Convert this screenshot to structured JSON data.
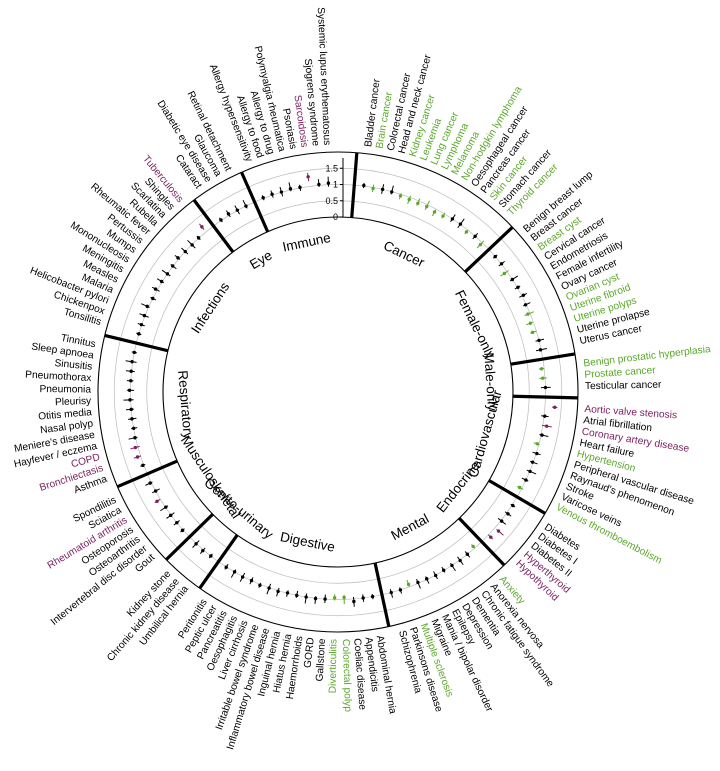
{
  "chart_data": {
    "type": "radial-forest",
    "y_ticks": [
      "0",
      "0.5",
      "1",
      "1.5"
    ],
    "colors": {
      "default": "#000000",
      "green": "#59a82a",
      "purple": "#7a1f5e"
    },
    "categories": [
      {
        "name": "Cancer",
        "diseases": [
          {
            "label": "Bladder cancer",
            "color": "default",
            "or": 1.02
          },
          {
            "label": "Brain cancer",
            "color": "green",
            "or": 0.97
          },
          {
            "label": "Colorectal cancer",
            "color": "default",
            "or": 1.0
          },
          {
            "label": "Head and neck cancer",
            "color": "default",
            "or": 0.99
          },
          {
            "label": "Kidney cancer",
            "color": "green",
            "or": 0.95
          },
          {
            "label": "Leukemia",
            "color": "green",
            "or": 0.93
          },
          {
            "label": "Lung cancer",
            "color": "green",
            "or": 0.92
          },
          {
            "label": "Lymphoma",
            "color": "green",
            "or": 0.94
          },
          {
            "label": "Melanoma",
            "color": "green",
            "or": 0.9
          },
          {
            "label": "Non-hodgkin lymphoma",
            "color": "green",
            "or": 0.92
          },
          {
            "label": "Oesophageal cancer",
            "color": "default",
            "or": 1.0
          },
          {
            "label": "Pancreas cancer",
            "color": "default",
            "or": 1.01
          },
          {
            "label": "Skin cancer",
            "color": "green",
            "or": 0.93
          },
          {
            "label": "Stomach cancer",
            "color": "default",
            "or": 1.0
          },
          {
            "label": "Thyroid cancer",
            "color": "green",
            "or": 0.92
          }
        ]
      },
      {
        "name": "Female-only",
        "diseases": [
          {
            "label": "Benign breast lump",
            "color": "default",
            "or": 1.0
          },
          {
            "label": "Breast cancer",
            "color": "default",
            "or": 1.01
          },
          {
            "label": "Breast cyst",
            "color": "green",
            "or": 0.9
          },
          {
            "label": "Cervical cancer",
            "color": "default",
            "or": 1.0
          },
          {
            "label": "Endometriosis",
            "color": "default",
            "or": 1.02
          },
          {
            "label": "Female infertility",
            "color": "default",
            "or": 1.05
          },
          {
            "label": "Ovary cancer",
            "color": "default",
            "or": 0.98
          },
          {
            "label": "Ovarian cyst",
            "color": "green",
            "or": 0.93
          },
          {
            "label": "Uterine fibroid",
            "color": "green",
            "or": 0.9
          },
          {
            "label": "Uterine polyps",
            "color": "green",
            "or": 0.88
          },
          {
            "label": "Uterine prolapse",
            "color": "default",
            "or": 1.0
          },
          {
            "label": "Uterus cancer",
            "color": "default",
            "or": 0.98
          }
        ]
      },
      {
        "name": "Male-only",
        "diseases": [
          {
            "label": "Benign prostatic hyperplasia",
            "color": "green",
            "or": 0.92
          },
          {
            "label": "Prostate cancer",
            "color": "green",
            "or": 0.93
          },
          {
            "label": "Testicular cancer",
            "color": "default",
            "or": 1.0
          }
        ]
      },
      {
        "name": "Cardiovascular",
        "diseases": [
          {
            "label": "Aortic valve stenosis",
            "color": "purple",
            "or": 1.3
          },
          {
            "label": "Atrial fibrillation",
            "color": "default",
            "or": 1.02
          },
          {
            "label": "Coronary artery disease",
            "color": "purple",
            "or": 1.12
          },
          {
            "label": "Heart failure",
            "color": "default",
            "or": 1.03
          },
          {
            "label": "Hypertension",
            "color": "green",
            "or": 0.95
          },
          {
            "label": "Peripheral vascular disease",
            "color": "default",
            "or": 1.02
          },
          {
            "label": "Raynaud's phenomenon",
            "color": "default",
            "or": 0.98
          },
          {
            "label": "Stroke",
            "color": "default",
            "or": 1.01
          },
          {
            "label": "Varicose veins",
            "color": "default",
            "or": 1.0
          },
          {
            "label": "Venous thromboembolism",
            "color": "green",
            "or": 0.93
          }
        ]
      },
      {
        "name": "Endocrine",
        "diseases": [
          {
            "label": "Diabetes",
            "color": "default",
            "or": 1.03
          },
          {
            "label": "Diabetes I",
            "color": "default",
            "or": 1.05
          },
          {
            "label": "Diabetes II",
            "color": "default",
            "or": 1.03
          },
          {
            "label": "Hyperthyroid",
            "color": "purple",
            "or": 1.15
          },
          {
            "label": "Hypothyroid",
            "color": "purple",
            "or": 1.1
          }
        ]
      },
      {
        "name": "Mental",
        "diseases": [
          {
            "label": "Anxiety",
            "color": "green",
            "or": 0.93
          },
          {
            "label": "Anorexia nervosa",
            "color": "default",
            "or": 1.0
          },
          {
            "label": "Chronic fatigue syndrome",
            "color": "default",
            "or": 1.02
          },
          {
            "label": "Dementia",
            "color": "default",
            "or": 1.0
          },
          {
            "label": "Depression",
            "color": "default",
            "or": 0.99
          },
          {
            "label": "Epilepsy",
            "color": "default",
            "or": 1.01
          },
          {
            "label": "Mania / bipolar disorder",
            "color": "default",
            "or": 0.98
          },
          {
            "label": "Migraine",
            "color": "default",
            "or": 0.97
          },
          {
            "label": "Multiple sclerosis",
            "color": "green",
            "or": 0.92
          },
          {
            "label": "Parkinsons disease",
            "color": "default",
            "or": 1.0
          },
          {
            "label": "Schizophrenia",
            "color": "default",
            "or": 1.0
          }
        ]
      },
      {
        "name": "Digestive",
        "diseases": [
          {
            "label": "Abdominal hernia",
            "color": "default",
            "or": 1.0
          },
          {
            "label": "Appendicitis",
            "color": "default",
            "or": 1.0
          },
          {
            "label": "Coeliac disease",
            "color": "default",
            "or": 1.08
          },
          {
            "label": "Colorectal polyp",
            "color": "green",
            "or": 0.94
          },
          {
            "label": "Diverticulitis",
            "color": "green",
            "or": 0.95
          },
          {
            "label": "Gallstone",
            "color": "default",
            "or": 1.0
          },
          {
            "label": "GORD",
            "color": "default",
            "or": 1.01
          },
          {
            "label": "Haemorrhoids",
            "color": "default",
            "or": 1.0
          },
          {
            "label": "Hiatus hernia",
            "color": "default",
            "or": 1.0
          },
          {
            "label": "Inguinal hernia",
            "color": "default",
            "or": 0.99
          },
          {
            "label": "Inflammatory bowel disease",
            "color": "default",
            "or": 1.02
          },
          {
            "label": "Irritable bowel syndrome",
            "color": "default",
            "or": 1.01
          },
          {
            "label": "Liver cirrhosis",
            "color": "default",
            "or": 1.03
          },
          {
            "label": "Oesophagitis",
            "color": "default",
            "or": 1.0
          },
          {
            "label": "Pancreatitis",
            "color": "default",
            "or": 1.02
          },
          {
            "label": "Peptic ulcer",
            "color": "default",
            "or": 1.0
          },
          {
            "label": "Peritonitis",
            "color": "default",
            "or": 1.01
          }
        ]
      },
      {
        "name": "Genito-urinary",
        "diseases": [
          {
            "label": "Umbilical hernia",
            "color": "default",
            "or": 1.0
          },
          {
            "label": "Chronic kidney disease",
            "color": "default",
            "or": 1.03
          },
          {
            "label": "Kidney stone",
            "color": "default",
            "or": 1.01
          }
        ]
      },
      {
        "name": "Musculoskeletal",
        "diseases": [
          {
            "label": "Gout",
            "color": "default",
            "or": 1.02
          },
          {
            "label": "Intervertebral disc disorder",
            "color": "default",
            "or": 1.0
          },
          {
            "label": "Osteoarthritis",
            "color": "default",
            "or": 1.01
          },
          {
            "label": "Osteoporosis",
            "color": "default",
            "or": 0.99
          },
          {
            "label": "Rheumatoid arthritis",
            "color": "purple",
            "or": 1.12
          },
          {
            "label": "Sciatica",
            "color": "default",
            "or": 1.0
          },
          {
            "label": "Spondilitis",
            "color": "default",
            "or": 1.04
          }
        ]
      },
      {
        "name": "Respiratory",
        "diseases": [
          {
            "label": "Asthma",
            "color": "default",
            "or": 1.03
          },
          {
            "label": "Bronchiectasis",
            "color": "purple",
            "or": 1.1
          },
          {
            "label": "COPD",
            "color": "purple",
            "or": 1.08
          },
          {
            "label": "Hayfever / eczema",
            "color": "default",
            "or": 1.02
          },
          {
            "label": "Meniere's disease",
            "color": "default",
            "or": 1.0
          },
          {
            "label": "Nasal polyp",
            "color": "default",
            "or": 1.01
          },
          {
            "label": "Otitis media",
            "color": "default",
            "or": 1.0
          },
          {
            "label": "Pleurisy",
            "color": "default",
            "or": 1.02
          },
          {
            "label": "Pneumonia",
            "color": "default",
            "or": 1.03
          },
          {
            "label": "Pneumothorax",
            "color": "default",
            "or": 1.0
          },
          {
            "label": "Sinusitis",
            "color": "default",
            "or": 1.01
          },
          {
            "label": "Sleep apnoea",
            "color": "default",
            "or": 1.02
          },
          {
            "label": "Tinnitus",
            "color": "default",
            "or": 1.0
          }
        ]
      },
      {
        "name": "Infections",
        "diseases": [
          {
            "label": "Tonsilitis",
            "color": "default",
            "or": 1.0
          },
          {
            "label": "Chickenpox",
            "color": "default",
            "or": 1.01
          },
          {
            "label": "Helicobacter pylori",
            "color": "default",
            "or": 1.02
          },
          {
            "label": "Malaria",
            "color": "default",
            "or": 1.05
          },
          {
            "label": "Measles",
            "color": "default",
            "or": 1.0
          },
          {
            "label": "Meningitis",
            "color": "default",
            "or": 1.06
          },
          {
            "label": "Mononucleosis",
            "color": "default",
            "or": 1.02
          },
          {
            "label": "Mumps",
            "color": "default",
            "or": 1.0
          },
          {
            "label": "Pertussis",
            "color": "default",
            "or": 1.01
          },
          {
            "label": "Rheumatic fever",
            "color": "default",
            "or": 1.04
          },
          {
            "label": "Rubella",
            "color": "default",
            "or": 1.0
          },
          {
            "label": "Scarlatina",
            "color": "default",
            "or": 0.99
          },
          {
            "label": "Shingles",
            "color": "default",
            "or": 1.01
          },
          {
            "label": "Tuberculosis",
            "color": "purple",
            "or": 1.2
          }
        ]
      },
      {
        "name": "Eye",
        "diseases": [
          {
            "label": "Cataract",
            "color": "default",
            "or": 1.02
          },
          {
            "label": "Diabetic eye disease",
            "color": "default",
            "or": 1.05
          },
          {
            "label": "Glaucoma",
            "color": "default",
            "or": 1.01
          },
          {
            "label": "Retinal detachment",
            "color": "default",
            "or": 1.0
          }
        ]
      },
      {
        "name": "Immune",
        "diseases": [
          {
            "label": "Allergy hypersensitivity",
            "color": "default",
            "or": 1.02
          },
          {
            "label": "Allergy to food",
            "color": "default",
            "or": 1.03
          },
          {
            "label": "Allergy to drug",
            "color": "default",
            "or": 1.01
          },
          {
            "label": "Polymyalgia rheumatica",
            "color": "default",
            "or": 1.04
          },
          {
            "label": "Psoriasis",
            "color": "default",
            "or": 1.02
          },
          {
            "label": "Sarcoidosis",
            "color": "purple",
            "or": 1.3
          },
          {
            "label": "Sjogrens syndrome",
            "color": "default",
            "or": 1.03
          },
          {
            "label": "Systemic lupus erythematosus",
            "color": "default",
            "or": 1.05
          }
        ]
      }
    ]
  }
}
